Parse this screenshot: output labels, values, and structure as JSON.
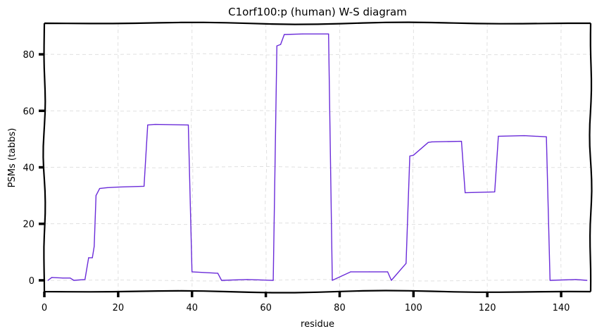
{
  "chart_data": {
    "type": "line",
    "title": "C1orf100:p (human) W-S diagram",
    "xlabel": "residue",
    "ylabel": "PSMs (tabbs)",
    "xlim": [
      0,
      148
    ],
    "ylim": [
      -4,
      91
    ],
    "xticks": [
      0,
      20,
      40,
      60,
      80,
      100,
      120,
      140
    ],
    "yticks": [
      0,
      20,
      40,
      60,
      80
    ],
    "grid": true,
    "line_color": "#6a2bd9",
    "x": [
      1,
      2,
      5,
      7,
      8,
      11,
      12,
      13,
      13.5,
      14,
      15,
      17,
      20,
      27,
      28,
      30,
      39,
      40,
      47,
      48,
      55,
      62,
      63,
      64,
      65,
      70,
      77,
      78,
      83,
      88,
      93,
      94,
      98,
      99,
      100,
      104,
      105,
      113,
      114,
      122,
      123,
      130,
      136,
      137,
      144,
      147
    ],
    "y": [
      0,
      1,
      0.8,
      0.8,
      0,
      0.3,
      8,
      8,
      12,
      30,
      32.5,
      32.8,
      33,
      33.3,
      55,
      55.2,
      55,
      3,
      2.5,
      0,
      0.3,
      0,
      83,
      83.5,
      87,
      87.2,
      87.2,
      0,
      3,
      3,
      3,
      0,
      6,
      44,
      44.3,
      48.8,
      49,
      49.2,
      31,
      31.3,
      51,
      51.2,
      50.8,
      0,
      0.3,
      0
    ]
  }
}
